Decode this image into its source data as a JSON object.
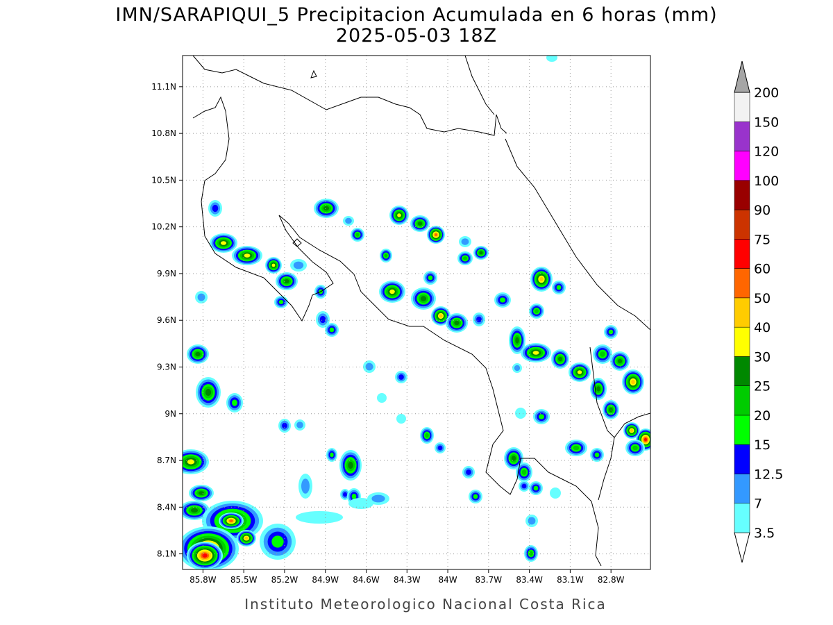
{
  "title": "IMN/SARAPIQUI_5 Precipitacion Acumulada en 6 horas (mm)",
  "subtitle": "2025-05-03 18Z",
  "footer": "Instituto Meteorologico Nacional Costa Rica",
  "map": {
    "lon_range": [
      -85.95,
      -82.51
    ],
    "lat_range": [
      8.0,
      11.3
    ],
    "lon_ticks": [
      {
        "value": -85.8,
        "label": "85.8W"
      },
      {
        "value": -85.5,
        "label": "85.5W"
      },
      {
        "value": -85.2,
        "label": "85.2W"
      },
      {
        "value": -84.9,
        "label": "84.9W"
      },
      {
        "value": -84.6,
        "label": "84.6W"
      },
      {
        "value": -84.3,
        "label": "84.3W"
      },
      {
        "value": -84.0,
        "label": "84W"
      },
      {
        "value": -83.7,
        "label": "83.7W"
      },
      {
        "value": -83.4,
        "label": "83.4W"
      },
      {
        "value": -83.1,
        "label": "83.1W"
      },
      {
        "value": -82.8,
        "label": "82.8W"
      }
    ],
    "lat_ticks": [
      {
        "value": 8.1,
        "label": "8.1N"
      },
      {
        "value": 8.4,
        "label": "8.4N"
      },
      {
        "value": 8.7,
        "label": "8.7N"
      },
      {
        "value": 9.0,
        "label": "9N"
      },
      {
        "value": 9.3,
        "label": "9.3N"
      },
      {
        "value": 9.6,
        "label": "9.6N"
      },
      {
        "value": 9.9,
        "label": "9.9N"
      },
      {
        "value": 10.2,
        "label": "10.2N"
      },
      {
        "value": 10.5,
        "label": "10.5N"
      },
      {
        "value": 10.8,
        "label": "10.8N"
      },
      {
        "value": 11.1,
        "label": "11.1N"
      }
    ],
    "grid": true
  },
  "colorbar": {
    "levels": [
      3.5,
      7,
      12.5,
      15,
      20,
      25,
      30,
      40,
      50,
      60,
      75,
      90,
      100,
      120,
      150,
      200
    ],
    "colors": [
      "#ffffff",
      "#66ffff",
      "#3399ff",
      "#0000ff",
      "#00ff00",
      "#00cc00",
      "#008800",
      "#ffff00",
      "#ffcc00",
      "#ff6600",
      "#ff0000",
      "#cc3300",
      "#990000",
      "#ff00ff",
      "#9933cc",
      "#f2f2f2",
      "#a6a6a6"
    ]
  }
}
